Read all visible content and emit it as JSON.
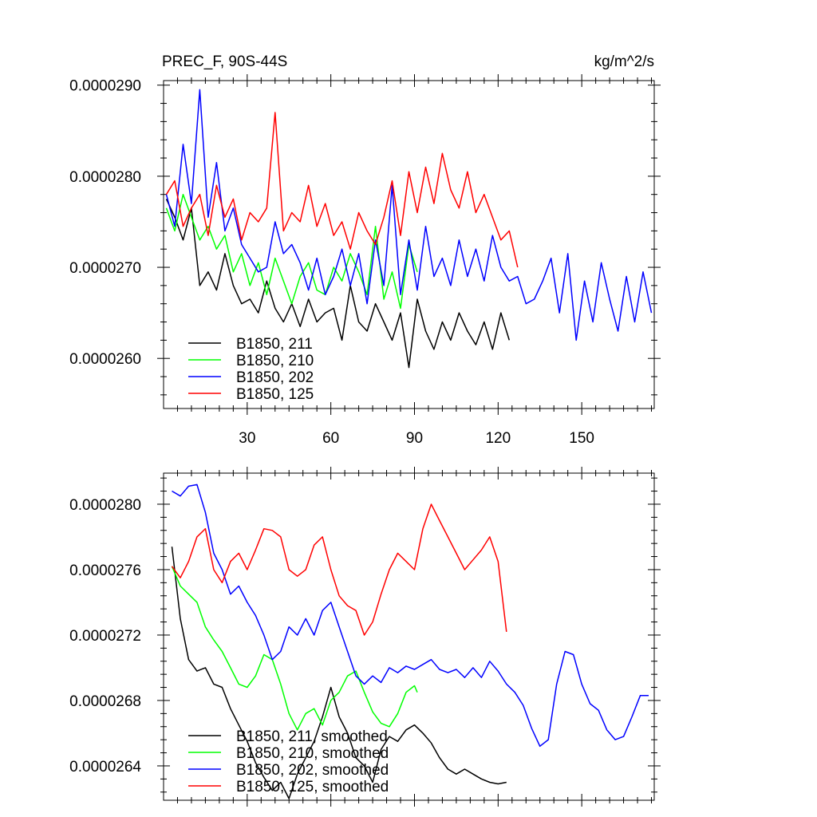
{
  "chart_data": [
    {
      "type": "line",
      "title": "PREC_F, 90S-44S",
      "units": "kg/m^2/s",
      "xlim": [
        0,
        176
      ],
      "ylim": [
        2.545e-06,
        2.905e-06
      ],
      "xticks": [
        30,
        60,
        90,
        120,
        150
      ],
      "xtick_labels": [
        "30",
        "60",
        "90",
        "120",
        "150"
      ],
      "yticks": [
        2.6e-06,
        2.7e-06,
        2.8e-06,
        2.9e-06
      ],
      "ytick_labels": [
        "0.0000260",
        "0.0000270",
        "0.0000280",
        "0.0000290"
      ],
      "legend_position": "bottom-left",
      "series": [
        {
          "name": "B1850, 211",
          "color": "#000000",
          "x": [
            1,
            4,
            7,
            10,
            13,
            16,
            19,
            22,
            25,
            28,
            31,
            34,
            37,
            40,
            43,
            46,
            49,
            52,
            55,
            58,
            61,
            64,
            67,
            70,
            73,
            76,
            79,
            82,
            85,
            88,
            91,
            94,
            97,
            100,
            103,
            106,
            109,
            112,
            115,
            118,
            121,
            124
          ],
          "y": [
            2.775e-06,
            2.755e-06,
            2.73e-06,
            2.765e-06,
            2.68e-06,
            2.695e-06,
            2.675e-06,
            2.715e-06,
            2.68e-06,
            2.66e-06,
            2.665e-06,
            2.65e-06,
            2.685e-06,
            2.655e-06,
            2.64e-06,
            2.66e-06,
            2.635e-06,
            2.665e-06,
            2.64e-06,
            2.65e-06,
            2.655e-06,
            2.62e-06,
            2.68e-06,
            2.64e-06,
            2.63e-06,
            2.66e-06,
            2.64e-06,
            2.62e-06,
            2.65e-06,
            2.59e-06,
            2.665e-06,
            2.63e-06,
            2.61e-06,
            2.64e-06,
            2.62e-06,
            2.65e-06,
            2.63e-06,
            2.615e-06,
            2.64e-06,
            2.61e-06,
            2.65e-06,
            2.62e-06
          ]
        },
        {
          "name": "B1850, 210",
          "color": "#00ff00",
          "x": [
            1,
            4,
            7,
            10,
            13,
            16,
            19,
            22,
            25,
            28,
            31,
            34,
            37,
            40,
            43,
            46,
            49,
            52,
            55,
            58,
            61,
            64,
            67,
            70,
            73,
            76,
            79,
            82,
            85,
            88,
            91
          ],
          "y": [
            2.765e-06,
            2.74e-06,
            2.78e-06,
            2.755e-06,
            2.73e-06,
            2.745e-06,
            2.72e-06,
            2.735e-06,
            2.695e-06,
            2.715e-06,
            2.68e-06,
            2.705e-06,
            2.67e-06,
            2.71e-06,
            2.685e-06,
            2.66e-06,
            2.69e-06,
            2.705e-06,
            2.675e-06,
            2.67e-06,
            2.7e-06,
            2.685e-06,
            2.715e-06,
            2.695e-06,
            2.67e-06,
            2.745e-06,
            2.665e-06,
            2.695e-06,
            2.655e-06,
            2.725e-06,
            2.695e-06
          ]
        },
        {
          "name": "B1850, 202",
          "color": "#0000ff",
          "x": [
            1,
            4,
            7,
            10,
            13,
            16,
            19,
            22,
            25,
            28,
            31,
            34,
            37,
            40,
            43,
            46,
            49,
            52,
            55,
            58,
            61,
            64,
            67,
            70,
            73,
            76,
            79,
            82,
            85,
            88,
            91,
            94,
            97,
            100,
            103,
            106,
            109,
            112,
            115,
            118,
            121,
            124,
            127,
            130,
            133,
            136,
            139,
            142,
            145,
            148,
            151,
            154,
            157,
            160,
            163,
            166,
            169,
            172,
            175
          ],
          "y": [
            2.78e-06,
            2.745e-06,
            2.835e-06,
            2.77e-06,
            2.895e-06,
            2.755e-06,
            2.815e-06,
            2.74e-06,
            2.765e-06,
            2.725e-06,
            2.71e-06,
            2.695e-06,
            2.7e-06,
            2.75e-06,
            2.715e-06,
            2.725e-06,
            2.705e-06,
            2.675e-06,
            2.71e-06,
            2.67e-06,
            2.69e-06,
            2.72e-06,
            2.68e-06,
            2.715e-06,
            2.66e-06,
            2.73e-06,
            2.68e-06,
            2.79e-06,
            2.67e-06,
            2.73e-06,
            2.675e-06,
            2.745e-06,
            2.69e-06,
            2.71e-06,
            2.68e-06,
            2.73e-06,
            2.69e-06,
            2.72e-06,
            2.685e-06,
            2.735e-06,
            2.7e-06,
            2.685e-06,
            2.69e-06,
            2.66e-06,
            2.665e-06,
            2.685e-06,
            2.71e-06,
            2.65e-06,
            2.715e-06,
            2.62e-06,
            2.685e-06,
            2.64e-06,
            2.705e-06,
            2.665e-06,
            2.63e-06,
            2.69e-06,
            2.64e-06,
            2.695e-06,
            2.65e-06
          ]
        },
        {
          "name": "B1850, 125",
          "color": "#ff0000",
          "x": [
            1,
            4,
            7,
            10,
            13,
            16,
            19,
            22,
            25,
            28,
            31,
            34,
            37,
            40,
            43,
            46,
            49,
            52,
            55,
            58,
            61,
            64,
            67,
            70,
            73,
            76,
            79,
            82,
            85,
            88,
            91,
            94,
            97,
            100,
            103,
            106,
            109,
            112,
            115,
            118,
            121,
            124,
            127
          ],
          "y": [
            2.78e-06,
            2.795e-06,
            2.745e-06,
            2.765e-06,
            2.78e-06,
            2.735e-06,
            2.79e-06,
            2.755e-06,
            2.775e-06,
            2.73e-06,
            2.76e-06,
            2.75e-06,
            2.765e-06,
            2.87e-06,
            2.74e-06,
            2.76e-06,
            2.75e-06,
            2.79e-06,
            2.745e-06,
            2.77e-06,
            2.735e-06,
            2.75e-06,
            2.72e-06,
            2.76e-06,
            2.74e-06,
            2.725e-06,
            2.755e-06,
            2.795e-06,
            2.735e-06,
            2.805e-06,
            2.76e-06,
            2.81e-06,
            2.77e-06,
            2.825e-06,
            2.785e-06,
            2.765e-06,
            2.805e-06,
            2.76e-06,
            2.78e-06,
            2.755e-06,
            2.73e-06,
            2.74e-06,
            2.7e-06
          ]
        }
      ]
    },
    {
      "type": "line",
      "xlim": [
        0,
        176
      ],
      "ylim": [
        2.619e-06,
        2.819e-06
      ],
      "xticks": [
        30,
        60,
        90,
        120,
        150
      ],
      "yticks": [
        2.64e-06,
        2.68e-06,
        2.72e-06,
        2.76e-06,
        2.8e-06
      ],
      "ytick_labels": [
        "0.0000264",
        "0.0000268",
        "0.0000272",
        "0.0000276",
        "0.0000280"
      ],
      "legend_position": "bottom-left",
      "series": [
        {
          "name": "B1850, 211, smoothed",
          "color": "#000000",
          "x": [
            3,
            6,
            9,
            12,
            15,
            18,
            21,
            24,
            27,
            30,
            33,
            36,
            39,
            42,
            45,
            48,
            51,
            54,
            57,
            60,
            63,
            66,
            69,
            72,
            75,
            78,
            81,
            84,
            87,
            90,
            93,
            96,
            99,
            102,
            105,
            108,
            111,
            114,
            117,
            120,
            123
          ],
          "y": [
            2.774e-06,
            2.73e-06,
            2.705e-06,
            2.698e-06,
            2.7e-06,
            2.69e-06,
            2.688e-06,
            2.675e-06,
            2.665e-06,
            2.655e-06,
            2.642e-06,
            2.633e-06,
            2.625e-06,
            2.63e-06,
            2.62e-06,
            2.635e-06,
            2.645e-06,
            2.655e-06,
            2.67e-06,
            2.688e-06,
            2.67e-06,
            2.66e-06,
            2.645e-06,
            2.64e-06,
            2.63e-06,
            2.65e-06,
            2.658e-06,
            2.655e-06,
            2.662e-06,
            2.665e-06,
            2.66e-06,
            2.654e-06,
            2.645e-06,
            2.638e-06,
            2.635e-06,
            2.638e-06,
            2.635e-06,
            2.632e-06,
            2.63e-06,
            2.629e-06,
            2.63e-06
          ]
        },
        {
          "name": "B1850, 210, smoothed",
          "color": "#00ff00",
          "x": [
            3,
            6,
            9,
            12,
            15,
            18,
            21,
            24,
            27,
            30,
            33,
            36,
            39,
            42,
            45,
            48,
            51,
            54,
            57,
            60,
            63,
            66,
            69,
            72,
            75,
            78,
            81,
            84,
            87,
            90,
            91
          ],
          "y": [
            2.762e-06,
            2.75e-06,
            2.745e-06,
            2.74e-06,
            2.725e-06,
            2.717e-06,
            2.71e-06,
            2.7e-06,
            2.69e-06,
            2.688e-06,
            2.695e-06,
            2.708e-06,
            2.705e-06,
            2.69e-06,
            2.672e-06,
            2.662e-06,
            2.672e-06,
            2.675e-06,
            2.665e-06,
            2.68e-06,
            2.685e-06,
            2.695e-06,
            2.698e-06,
            2.685e-06,
            2.673e-06,
            2.666e-06,
            2.664e-06,
            2.672e-06,
            2.685e-06,
            2.689e-06,
            2.685e-06
          ]
        },
        {
          "name": "B1850, 202, smoothed",
          "color": "#0000ff",
          "x": [
            3,
            6,
            9,
            12,
            15,
            18,
            21,
            24,
            27,
            30,
            33,
            36,
            39,
            42,
            45,
            48,
            51,
            54,
            57,
            60,
            63,
            66,
            69,
            72,
            75,
            78,
            81,
            84,
            87,
            90,
            93,
            96,
            99,
            102,
            105,
            108,
            111,
            114,
            117,
            120,
            123,
            126,
            129,
            132,
            135,
            138,
            141,
            144,
            147,
            150,
            153,
            156,
            159,
            162,
            165,
            168,
            171,
            174
          ],
          "y": [
            2.808e-06,
            2.805e-06,
            2.811e-06,
            2.812e-06,
            2.795e-06,
            2.77e-06,
            2.76e-06,
            2.745e-06,
            2.75e-06,
            2.74e-06,
            2.732e-06,
            2.72e-06,
            2.705e-06,
            2.71e-06,
            2.725e-06,
            2.72e-06,
            2.73e-06,
            2.72e-06,
            2.735e-06,
            2.74e-06,
            2.725e-06,
            2.71e-06,
            2.695e-06,
            2.69e-06,
            2.695e-06,
            2.691e-06,
            2.7e-06,
            2.697e-06,
            2.701e-06,
            2.699e-06,
            2.702e-06,
            2.705e-06,
            2.699e-06,
            2.697e-06,
            2.699e-06,
            2.694e-06,
            2.7e-06,
            2.694e-06,
            2.704e-06,
            2.698e-06,
            2.69e-06,
            2.685e-06,
            2.677e-06,
            2.663e-06,
            2.652e-06,
            2.656e-06,
            2.69e-06,
            2.71e-06,
            2.708e-06,
            2.69e-06,
            2.678e-06,
            2.674e-06,
            2.662e-06,
            2.656e-06,
            2.658e-06,
            2.67e-06,
            2.683e-06,
            2.683e-06
          ]
        },
        {
          "name": "B1850, 125, smoothed",
          "color": "#ff0000",
          "x": [
            3,
            6,
            9,
            12,
            15,
            18,
            21,
            24,
            27,
            30,
            33,
            36,
            39,
            42,
            45,
            48,
            51,
            54,
            57,
            60,
            63,
            66,
            69,
            72,
            75,
            78,
            81,
            84,
            87,
            90,
            93,
            96,
            99,
            102,
            105,
            108,
            111,
            114,
            117,
            120,
            123
          ],
          "y": [
            2.762e-06,
            2.755e-06,
            2.765e-06,
            2.78e-06,
            2.785e-06,
            2.76e-06,
            2.752e-06,
            2.765e-06,
            2.77e-06,
            2.76e-06,
            2.772e-06,
            2.785e-06,
            2.784e-06,
            2.78e-06,
            2.76e-06,
            2.756e-06,
            2.76e-06,
            2.775e-06,
            2.78e-06,
            2.76e-06,
            2.744e-06,
            2.738e-06,
            2.735e-06,
            2.72e-06,
            2.728e-06,
            2.745e-06,
            2.76e-06,
            2.77e-06,
            2.765e-06,
            2.76e-06,
            2.785e-06,
            2.8e-06,
            2.79e-06,
            2.78e-06,
            2.77e-06,
            2.76e-06,
            2.766e-06,
            2.772e-06,
            2.78e-06,
            2.765e-06,
            2.722e-06
          ]
        }
      ]
    }
  ]
}
